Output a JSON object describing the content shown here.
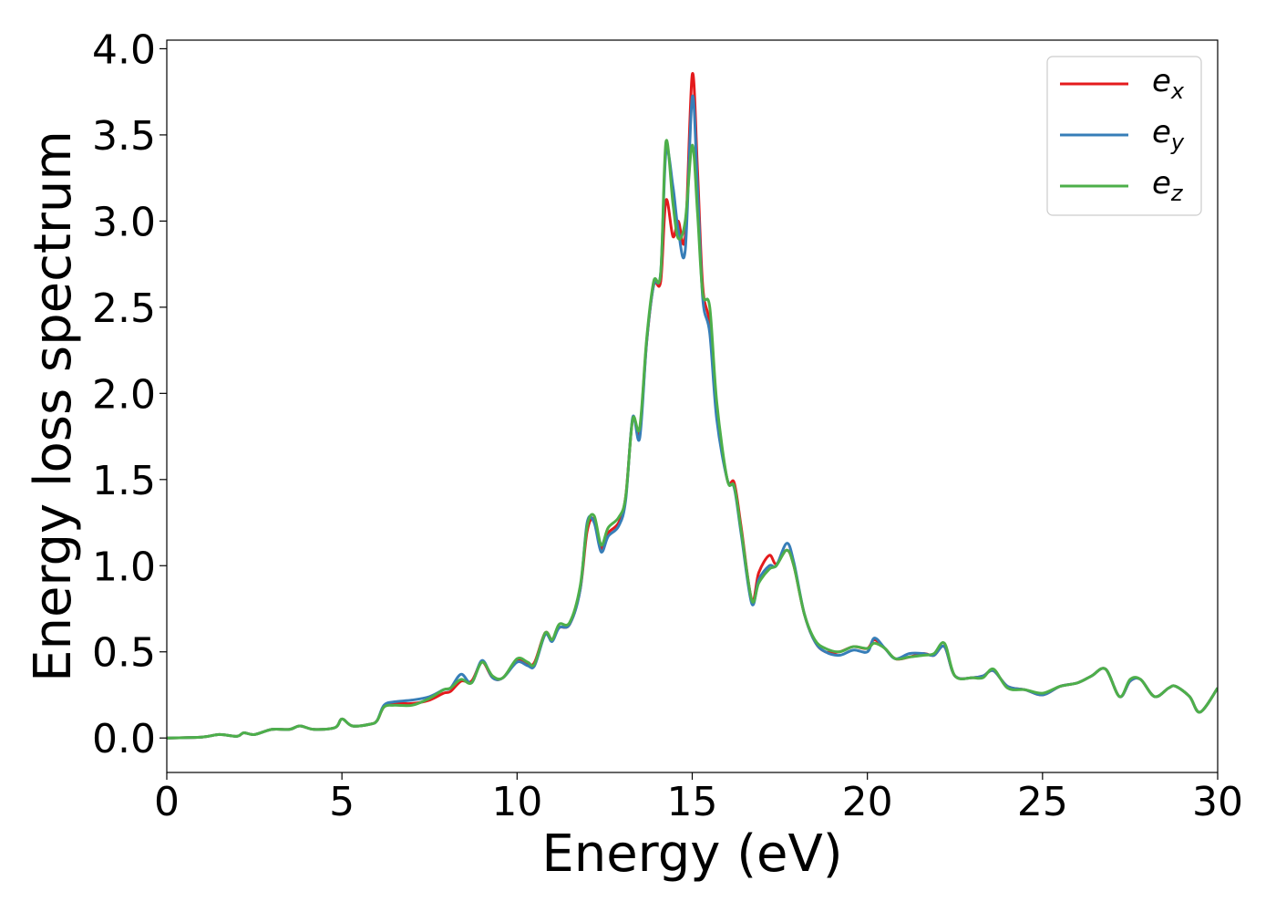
{
  "chart_data": {
    "type": "line",
    "title": "",
    "xlabel": "Energy (eV)",
    "ylabel": "Energy loss spectrum",
    "xlim": [
      0,
      30
    ],
    "ylim": [
      -0.2,
      4.05
    ],
    "xticks": [
      0,
      5,
      10,
      15,
      20,
      25,
      30
    ],
    "xtick_labels": [
      "0",
      "5",
      "10",
      "15",
      "20",
      "25",
      "30"
    ],
    "yticks": [
      0.0,
      0.5,
      1.0,
      1.5,
      2.0,
      2.5,
      3.0,
      3.5,
      4.0
    ],
    "ytick_labels": [
      "0.0",
      "0.5",
      "1.0",
      "1.5",
      "2.0",
      "2.5",
      "3.0",
      "3.5",
      "4.0"
    ],
    "grid": false,
    "legend_position": "top-right",
    "series": [
      {
        "name": "e_x",
        "legend_base": "e",
        "legend_sub": "x",
        "color": "#e41a1c",
        "x": [
          0,
          1,
          1.5,
          2,
          2.2,
          2.5,
          3,
          3.5,
          3.8,
          4.2,
          4.8,
          5,
          5.3,
          5.8,
          6,
          6.2,
          6.5,
          7,
          7.5,
          7.9,
          8.1,
          8.4,
          8.7,
          9,
          9.3,
          9.6,
          10,
          10.3,
          10.5,
          10.8,
          11,
          11.2,
          11.5,
          11.8,
          12,
          12.2,
          12.4,
          12.6,
          12.9,
          13.1,
          13.3,
          13.5,
          13.7,
          13.9,
          14.1,
          14.25,
          14.45,
          14.6,
          14.8,
          15,
          15.15,
          15.3,
          15.5,
          15.7,
          16,
          16.2,
          16.4,
          16.7,
          16.9,
          17.2,
          17.4,
          17.7,
          17.9,
          18.2,
          18.5,
          18.8,
          19.2,
          19.6,
          20,
          20.2,
          20.5,
          20.8,
          21.2,
          21.6,
          21.9,
          22.2,
          22.5,
          23,
          23.3,
          23.6,
          24,
          24.5,
          25,
          25.5,
          26,
          26.4,
          26.8,
          27.2,
          27.5,
          27.8,
          28.2,
          28.6,
          28.8,
          29.2,
          29.5,
          30
        ],
        "y": [
          0.0,
          0.005,
          0.02,
          0.01,
          0.03,
          0.02,
          0.05,
          0.05,
          0.07,
          0.05,
          0.06,
          0.11,
          0.07,
          0.08,
          0.1,
          0.18,
          0.2,
          0.2,
          0.22,
          0.26,
          0.27,
          0.33,
          0.33,
          0.44,
          0.35,
          0.35,
          0.45,
          0.43,
          0.44,
          0.61,
          0.57,
          0.64,
          0.66,
          0.86,
          1.2,
          1.27,
          1.1,
          1.19,
          1.25,
          1.4,
          1.85,
          1.78,
          2.3,
          2.63,
          2.65,
          3.12,
          2.91,
          3.0,
          2.91,
          3.85,
          3.3,
          2.62,
          2.4,
          1.9,
          1.5,
          1.48,
          1.22,
          0.8,
          0.96,
          1.06,
          1.01,
          1.09,
          1.0,
          0.72,
          0.56,
          0.5,
          0.5,
          0.53,
          0.52,
          0.57,
          0.52,
          0.46,
          0.47,
          0.49,
          0.48,
          0.53,
          0.36,
          0.35,
          0.36,
          0.39,
          0.3,
          0.28,
          0.25,
          0.3,
          0.32,
          0.36,
          0.4,
          0.24,
          0.33,
          0.34,
          0.24,
          0.29,
          0.3,
          0.24,
          0.15,
          0.29
        ]
      },
      {
        "name": "e_y",
        "legend_base": "e",
        "legend_sub": "y",
        "color": "#377eb8",
        "x": [
          0,
          1,
          1.5,
          2,
          2.2,
          2.5,
          3,
          3.5,
          3.8,
          4.2,
          4.8,
          5,
          5.3,
          5.8,
          6,
          6.2,
          6.5,
          7,
          7.5,
          7.9,
          8.1,
          8.4,
          8.7,
          9,
          9.3,
          9.6,
          10,
          10.3,
          10.5,
          10.8,
          11,
          11.2,
          11.5,
          11.8,
          12,
          12.2,
          12.4,
          12.6,
          12.9,
          13.1,
          13.3,
          13.5,
          13.7,
          13.9,
          14.1,
          14.25,
          14.45,
          14.6,
          14.8,
          15,
          15.15,
          15.3,
          15.5,
          15.7,
          16,
          16.2,
          16.4,
          16.7,
          16.9,
          17.2,
          17.4,
          17.7,
          17.9,
          18.2,
          18.5,
          18.8,
          19.2,
          19.6,
          20,
          20.2,
          20.5,
          20.8,
          21.2,
          21.6,
          21.9,
          22.2,
          22.5,
          23,
          23.3,
          23.6,
          24,
          24.5,
          25,
          25.5,
          26,
          26.4,
          26.8,
          27.2,
          27.5,
          27.8,
          28.2,
          28.6,
          28.8,
          29.2,
          29.5,
          30
        ],
        "y": [
          0.0,
          0.005,
          0.02,
          0.01,
          0.03,
          0.02,
          0.05,
          0.05,
          0.07,
          0.05,
          0.06,
          0.11,
          0.07,
          0.08,
          0.1,
          0.19,
          0.21,
          0.22,
          0.24,
          0.28,
          0.29,
          0.37,
          0.32,
          0.45,
          0.35,
          0.35,
          0.44,
          0.42,
          0.42,
          0.6,
          0.56,
          0.64,
          0.66,
          0.86,
          1.25,
          1.25,
          1.08,
          1.17,
          1.23,
          1.38,
          1.86,
          1.74,
          2.3,
          2.63,
          2.7,
          3.4,
          3.2,
          2.95,
          2.83,
          3.72,
          3.2,
          2.55,
          2.35,
          1.85,
          1.5,
          1.45,
          1.18,
          0.78,
          0.92,
          1.0,
          1.0,
          1.13,
          1.02,
          0.72,
          0.56,
          0.5,
          0.48,
          0.51,
          0.5,
          0.58,
          0.52,
          0.46,
          0.49,
          0.49,
          0.48,
          0.53,
          0.36,
          0.35,
          0.36,
          0.39,
          0.3,
          0.28,
          0.25,
          0.3,
          0.32,
          0.36,
          0.4,
          0.24,
          0.33,
          0.34,
          0.24,
          0.29,
          0.3,
          0.24,
          0.15,
          0.29
        ]
      },
      {
        "name": "e_z",
        "legend_base": "e",
        "legend_sub": "z",
        "color": "#4daf4a",
        "x": [
          0,
          1,
          1.5,
          2,
          2.2,
          2.5,
          3,
          3.5,
          3.8,
          4.2,
          4.8,
          5,
          5.3,
          5.8,
          6,
          6.2,
          6.5,
          7,
          7.5,
          7.9,
          8.1,
          8.4,
          8.7,
          9,
          9.3,
          9.6,
          10,
          10.3,
          10.5,
          10.8,
          11,
          11.2,
          11.5,
          11.8,
          12,
          12.2,
          12.4,
          12.6,
          12.9,
          13.1,
          13.3,
          13.5,
          13.7,
          13.9,
          14.1,
          14.25,
          14.45,
          14.6,
          14.8,
          15,
          15.15,
          15.3,
          15.5,
          15.7,
          16,
          16.2,
          16.4,
          16.7,
          16.9,
          17.2,
          17.4,
          17.7,
          17.9,
          18.2,
          18.5,
          18.8,
          19.2,
          19.6,
          20,
          20.2,
          20.5,
          20.8,
          21.2,
          21.6,
          21.9,
          22.2,
          22.5,
          23,
          23.3,
          23.6,
          24,
          24.5,
          25,
          25.5,
          26,
          26.4,
          26.8,
          27.2,
          27.5,
          27.8,
          28.2,
          28.6,
          28.8,
          29.2,
          29.5,
          30
        ],
        "y": [
          0.0,
          0.005,
          0.02,
          0.01,
          0.03,
          0.02,
          0.05,
          0.05,
          0.07,
          0.05,
          0.06,
          0.11,
          0.07,
          0.08,
          0.1,
          0.18,
          0.19,
          0.19,
          0.23,
          0.28,
          0.29,
          0.34,
          0.32,
          0.44,
          0.36,
          0.35,
          0.46,
          0.44,
          0.43,
          0.61,
          0.57,
          0.66,
          0.67,
          0.88,
          1.23,
          1.29,
          1.12,
          1.22,
          1.28,
          1.4,
          1.85,
          1.8,
          2.32,
          2.65,
          2.7,
          3.46,
          3.1,
          2.9,
          3.0,
          3.44,
          3.05,
          2.58,
          2.5,
          1.95,
          1.5,
          1.46,
          1.2,
          0.8,
          0.9,
          0.98,
          1.0,
          1.09,
          1.0,
          0.72,
          0.57,
          0.52,
          0.5,
          0.53,
          0.52,
          0.55,
          0.52,
          0.46,
          0.47,
          0.48,
          0.49,
          0.55,
          0.36,
          0.35,
          0.35,
          0.4,
          0.29,
          0.28,
          0.26,
          0.3,
          0.32,
          0.36,
          0.4,
          0.24,
          0.34,
          0.34,
          0.24,
          0.29,
          0.3,
          0.24,
          0.15,
          0.29
        ]
      }
    ]
  }
}
